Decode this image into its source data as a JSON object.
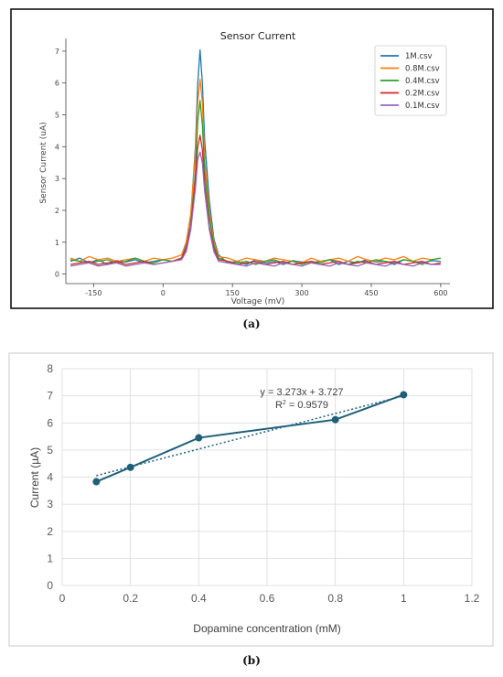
{
  "panel_labels": {
    "a": "(a)",
    "b": "(b)"
  },
  "chart_data": [
    {
      "type": "line",
      "title": "Sensor Current",
      "xlabel": "Voltage (mV)",
      "ylabel": "Sensor Current (uA)",
      "xlim": [
        -210,
        620
      ],
      "ylim": [
        -0.3,
        7.4
      ],
      "xticks": [
        -150,
        0,
        150,
        300,
        450,
        600
      ],
      "yticks": [
        0,
        1,
        2,
        3,
        4,
        5,
        6,
        7
      ],
      "grid": false,
      "legend_position": "top-right",
      "x": [
        -200,
        -180,
        -160,
        -140,
        -120,
        -100,
        -80,
        -60,
        -40,
        -20,
        0,
        20,
        40,
        50,
        60,
        70,
        75,
        80,
        85,
        90,
        100,
        110,
        120,
        140,
        160,
        180,
        200,
        220,
        240,
        260,
        280,
        300,
        320,
        340,
        360,
        380,
        400,
        420,
        440,
        460,
        480,
        500,
        520,
        540,
        560,
        580,
        600
      ],
      "series": [
        {
          "name": "1M.csv",
          "color": "#1f77b4",
          "values": [
            0.4,
            0.5,
            0.35,
            0.45,
            0.3,
            0.42,
            0.38,
            0.45,
            0.35,
            0.4,
            0.45,
            0.4,
            0.5,
            0.9,
            1.8,
            4.0,
            6.0,
            7.04,
            6.0,
            4.2,
            2.3,
            1.1,
            0.6,
            0.35,
            0.4,
            0.3,
            0.45,
            0.35,
            0.4,
            0.3,
            0.42,
            0.38,
            0.35,
            0.4,
            0.45,
            0.3,
            0.4,
            0.35,
            0.45,
            0.38,
            0.4,
            0.3,
            0.45,
            0.4,
            0.35,
            0.42,
            0.4
          ]
        },
        {
          "name": "0.8M.csv",
          "color": "#ff7f0e",
          "values": [
            0.5,
            0.4,
            0.55,
            0.45,
            0.5,
            0.4,
            0.45,
            0.5,
            0.4,
            0.5,
            0.45,
            0.5,
            0.6,
            1.0,
            1.9,
            3.8,
            5.4,
            6.12,
            5.4,
            3.6,
            2.0,
            1.0,
            0.55,
            0.5,
            0.4,
            0.5,
            0.45,
            0.4,
            0.5,
            0.45,
            0.4,
            0.35,
            0.5,
            0.4,
            0.45,
            0.5,
            0.4,
            0.55,
            0.45,
            0.4,
            0.5,
            0.45,
            0.55,
            0.4,
            0.5,
            0.45,
            0.5
          ]
        },
        {
          "name": "0.4M.csv",
          "color": "#2ca02c",
          "values": [
            0.45,
            0.4,
            0.35,
            0.4,
            0.45,
            0.35,
            0.4,
            0.5,
            0.4,
            0.35,
            0.45,
            0.4,
            0.5,
            0.8,
            1.5,
            3.2,
            4.8,
            5.45,
            4.7,
            3.2,
            1.8,
            0.9,
            0.5,
            0.4,
            0.35,
            0.4,
            0.3,
            0.4,
            0.45,
            0.35,
            0.4,
            0.3,
            0.4,
            0.35,
            0.45,
            0.4,
            0.3,
            0.4,
            0.35,
            0.45,
            0.4,
            0.35,
            0.45,
            0.4,
            0.3,
            0.45,
            0.5
          ]
        },
        {
          "name": "0.2M.csv",
          "color": "#d62728",
          "values": [
            0.3,
            0.35,
            0.4,
            0.3,
            0.35,
            0.4,
            0.3,
            0.35,
            0.4,
            0.3,
            0.35,
            0.4,
            0.5,
            0.8,
            1.5,
            3.0,
            4.0,
            4.36,
            3.9,
            2.8,
            1.5,
            0.8,
            0.45,
            0.4,
            0.3,
            0.35,
            0.4,
            0.3,
            0.35,
            0.4,
            0.3,
            0.35,
            0.4,
            0.3,
            0.35,
            0.4,
            0.3,
            0.35,
            0.4,
            0.3,
            0.35,
            0.4,
            0.3,
            0.35,
            0.4,
            0.3,
            0.35
          ]
        },
        {
          "name": "0.1M.csv",
          "color": "#9467bd",
          "values": [
            0.25,
            0.3,
            0.35,
            0.25,
            0.3,
            0.35,
            0.25,
            0.3,
            0.35,
            0.3,
            0.35,
            0.4,
            0.45,
            0.7,
            1.4,
            2.7,
            3.6,
            3.83,
            3.5,
            2.6,
            1.4,
            0.7,
            0.4,
            0.35,
            0.3,
            0.25,
            0.35,
            0.3,
            0.25,
            0.35,
            0.3,
            0.25,
            0.35,
            0.3,
            0.25,
            0.35,
            0.3,
            0.25,
            0.35,
            0.3,
            0.25,
            0.35,
            0.3,
            0.25,
            0.35,
            0.3,
            0.3
          ]
        }
      ]
    },
    {
      "type": "scatter",
      "title": "",
      "xlabel": "Dopamine concentration (mM)",
      "ylabel": "Current (µA)",
      "xlim": [
        0,
        1.2
      ],
      "ylim": [
        0,
        8
      ],
      "xticks": [
        0,
        0.2,
        0.4,
        0.6,
        0.8,
        1,
        1.2
      ],
      "yticks": [
        0,
        1,
        2,
        3,
        4,
        5,
        6,
        7,
        8
      ],
      "grid": true,
      "series": [
        {
          "name": "",
          "color": "#1f5f7a",
          "x": [
            0.1,
            0.2,
            0.4,
            0.8,
            1.0
          ],
          "values": [
            3.83,
            4.36,
            5.45,
            6.12,
            7.04
          ]
        }
      ],
      "trendline": {
        "type": "linear",
        "slope": 3.273,
        "intercept": 3.727,
        "color": "#1f5f7a"
      },
      "annotations": {
        "equation": "y = 3.273x + 3.727",
        "r2_prefix": "R",
        "r2_sup": "2",
        "r2_value": " = 0.9579"
      }
    }
  ]
}
